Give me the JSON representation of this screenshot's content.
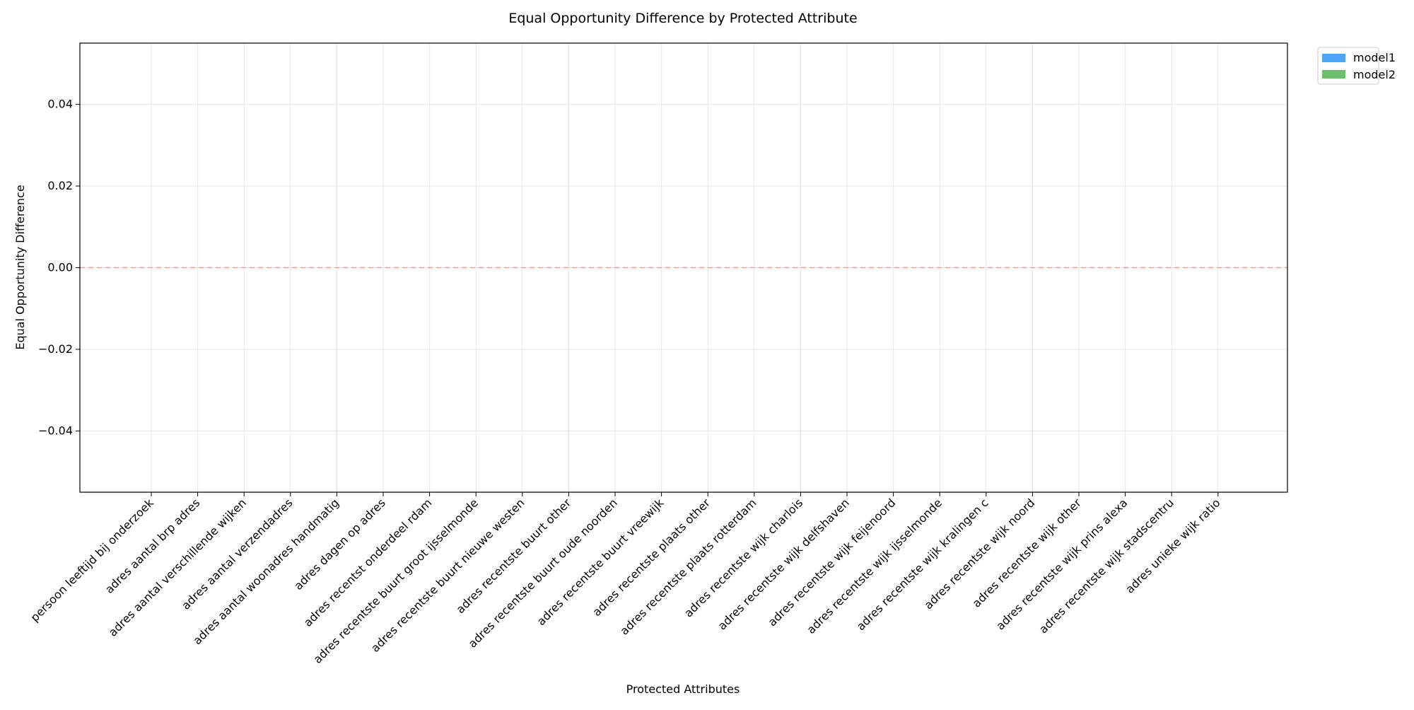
{
  "chart_data": {
    "type": "bar",
    "title": "Equal Opportunity Difference by Protected Attribute",
    "xlabel": "Protected Attributes",
    "ylabel": "Equal Opportunity Difference",
    "ylim": [
      -0.055,
      0.055
    ],
    "yticks": [
      -0.04,
      -0.02,
      0.0,
      0.02,
      0.04
    ],
    "ytick_labels": [
      "−0.04",
      "−0.02",
      "0.00",
      "0.02",
      "0.04"
    ],
    "grid": true,
    "legend_position": "outside-top-right",
    "reference_line": {
      "y": 0.0,
      "style": "dashed",
      "color": "#e8a092"
    },
    "categories": [
      "persoon leeftijd bij onderzoek",
      "adres aantal brp adres",
      "adres aantal verschillende wijken",
      "adres aantal verzendadres",
      "adres aantal woonadres handmatig",
      "adres dagen op adres",
      "adres recentst onderdeel rdam",
      "adres recentste buurt groot ijsselmonde",
      "adres recentste buurt nieuwe westen",
      "adres recentste buurt other",
      "adres recentste buurt oude noorden",
      "adres recentste buurt vreewijk",
      "adres recentste plaats other",
      "adres recentste plaats rotterdam",
      "adres recentste wijk charlois",
      "adres recentste wijk delfshaven",
      "adres recentste wijk feijenoord",
      "adres recentste wijk ijsselmonde",
      "adres recentste wijk kralingen c",
      "adres recentste wijk noord",
      "adres recentste wijk other",
      "adres recentste wijk prins alexa",
      "adres recentste wijk stadscentru",
      "adres unieke wijk ratio"
    ],
    "series": [
      {
        "name": "model1",
        "color": "#4da6f5",
        "values": [
          0,
          0,
          0,
          0,
          0,
          0,
          0,
          0,
          0,
          0,
          0,
          0,
          0,
          0,
          0,
          0,
          0,
          0,
          0,
          0,
          0,
          0,
          0,
          0
        ]
      },
      {
        "name": "model2",
        "color": "#6dbf6d",
        "values": [
          0,
          0,
          0,
          0,
          0,
          0,
          0,
          0,
          0,
          0,
          0,
          0,
          0,
          0,
          0,
          0,
          0,
          0,
          0,
          0,
          0,
          0,
          0,
          0
        ]
      }
    ]
  }
}
